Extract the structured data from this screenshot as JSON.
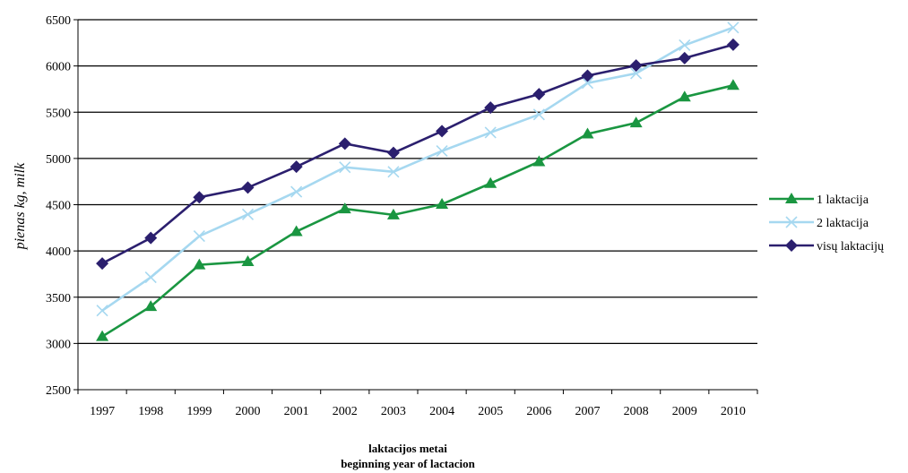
{
  "chart_data": {
    "type": "line",
    "xlabel_line1": "laktacijos metai",
    "xlabel_line2": "beginning year of lactacion",
    "ylabel": "pienas kg, milk",
    "ylim": [
      2500,
      6500
    ],
    "yticks": [
      2500,
      3000,
      3500,
      4000,
      4500,
      5000,
      5500,
      6000,
      6500
    ],
    "grid": true,
    "legend_position": "right",
    "categories": [
      "1997",
      "1998",
      "1999",
      "2000",
      "2001",
      "2002",
      "2003",
      "2004",
      "2005",
      "2006",
      "2007",
      "2008",
      "2009",
      "2010"
    ],
    "series": [
      {
        "name": "1 laktacija",
        "color": "#1a9641",
        "marker": "triangle",
        "values": [
          3075,
          3400,
          3850,
          3885,
          4210,
          4455,
          4390,
          4505,
          4730,
          4965,
          5265,
          5385,
          5665,
          5790
        ]
      },
      {
        "name": "2 laktacija",
        "color": "#a6d8f0",
        "marker": "cross",
        "values": [
          3355,
          3715,
          4160,
          4395,
          4640,
          4905,
          4855,
          5080,
          5280,
          5475,
          5815,
          5920,
          6225,
          6415
        ]
      },
      {
        "name": "visų laktacijų",
        "color": "#2b1f6e",
        "marker": "diamond",
        "values": [
          3865,
          4140,
          4580,
          4685,
          4910,
          5160,
          5060,
          5295,
          5550,
          5695,
          5895,
          6005,
          6085,
          6230
        ]
      }
    ]
  }
}
